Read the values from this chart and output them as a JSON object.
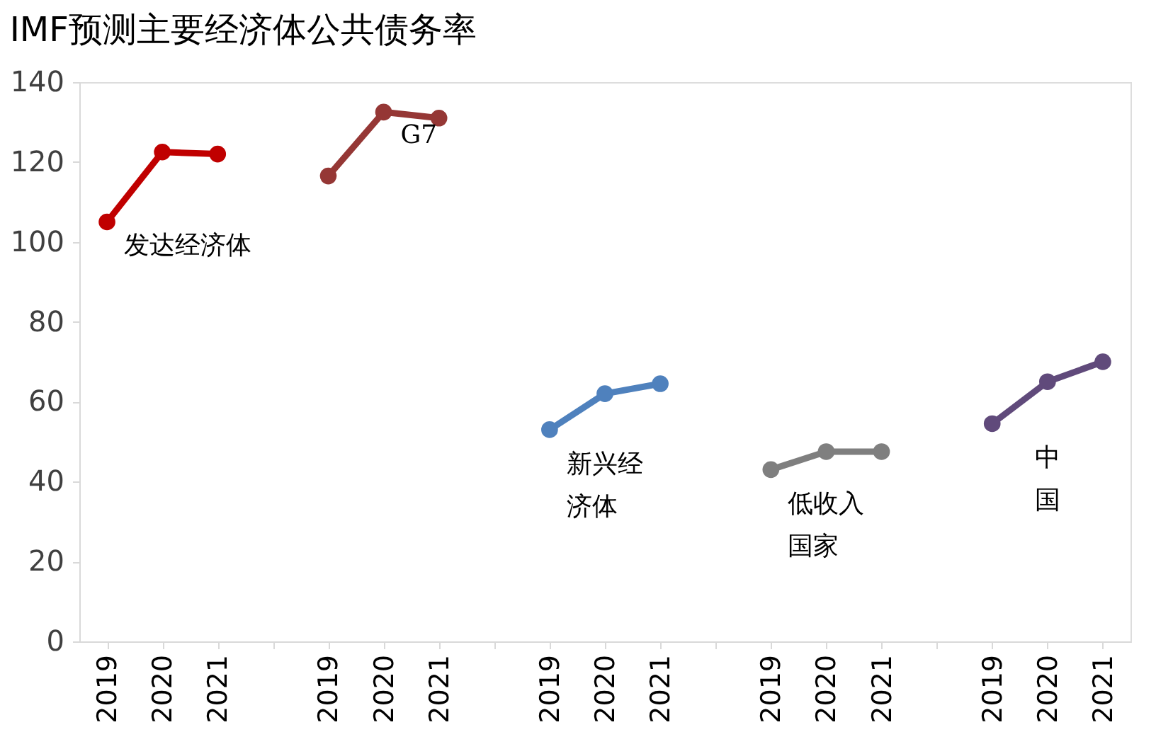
{
  "chart_data": {
    "type": "line",
    "title": "IMF预测主要经济体公共债务率",
    "categories": [
      "2019",
      "2020",
      "2021",
      null,
      "2019",
      "2020",
      "2021",
      null,
      "2019",
      "2020",
      "2021",
      null,
      "2019",
      "2020",
      "2021",
      null,
      "2019",
      "2020",
      "2021"
    ],
    "series": [
      {
        "name": "发达经济体",
        "color": "#c00000",
        "values": [
          105,
          122.5,
          122,
          null,
          null,
          null,
          null,
          null,
          null,
          null,
          null,
          null,
          null,
          null,
          null,
          null,
          null,
          null,
          null
        ]
      },
      {
        "name": "G7",
        "color": "#953735",
        "values": [
          null,
          null,
          null,
          null,
          116.5,
          132.5,
          131,
          null,
          null,
          null,
          null,
          null,
          null,
          null,
          null,
          null,
          null,
          null,
          null
        ]
      },
      {
        "name": "新兴经济体",
        "color": "#4f81bd",
        "values": [
          null,
          null,
          null,
          null,
          null,
          null,
          null,
          null,
          53,
          62,
          64.5,
          null,
          null,
          null,
          null,
          null,
          null,
          null,
          null
        ]
      },
      {
        "name": "低收入国家",
        "color": "#7f7f7f",
        "values": [
          null,
          null,
          null,
          null,
          null,
          null,
          null,
          null,
          null,
          null,
          null,
          null,
          43,
          47.5,
          47.5,
          null,
          null,
          null,
          null
        ]
      },
      {
        "name": "中国",
        "color": "#604a7b",
        "values": [
          null,
          null,
          null,
          null,
          null,
          null,
          null,
          null,
          null,
          null,
          null,
          null,
          null,
          null,
          null,
          null,
          54.5,
          65,
          70
        ]
      }
    ],
    "ylim": [
      0,
      140
    ],
    "yticks": [
      0,
      20,
      40,
      60,
      80,
      100,
      120,
      140
    ],
    "grid": false,
    "marker": "circle",
    "line_style": "solid"
  }
}
